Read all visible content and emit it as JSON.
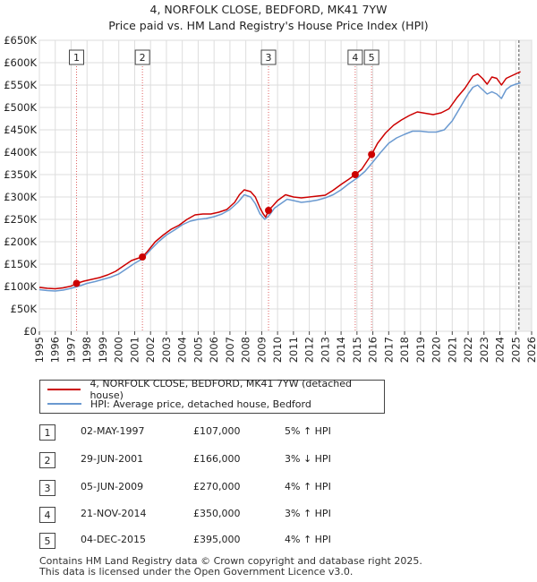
{
  "chart_data": {
    "type": "line",
    "title": "4, NORFOLK CLOSE, BEDFORD, MK41 7YW",
    "subtitle": "Price paid vs. HM Land Registry's House Price Index (HPI)",
    "xlabel": "",
    "ylabel": "",
    "xlim": [
      1995,
      2026
    ],
    "ylim": [
      0,
      650000
    ],
    "x_ticks": [
      "1995",
      "1996",
      "1997",
      "1998",
      "1999",
      "2000",
      "2001",
      "2002",
      "2003",
      "2004",
      "2005",
      "2006",
      "2007",
      "2008",
      "2009",
      "2010",
      "2011",
      "2012",
      "2013",
      "2014",
      "2015",
      "2016",
      "2017",
      "2018",
      "2019",
      "2020",
      "2021",
      "2022",
      "2023",
      "2024",
      "2025",
      "2026"
    ],
    "y_ticks": [
      {
        "value": 0,
        "label": "£0"
      },
      {
        "value": 50000,
        "label": "£50K"
      },
      {
        "value": 100000,
        "label": "£100K"
      },
      {
        "value": 150000,
        "label": "£150K"
      },
      {
        "value": 200000,
        "label": "£200K"
      },
      {
        "value": 250000,
        "label": "£250K"
      },
      {
        "value": 300000,
        "label": "£300K"
      },
      {
        "value": 350000,
        "label": "£350K"
      },
      {
        "value": 400000,
        "label": "£400K"
      },
      {
        "value": 450000,
        "label": "£450K"
      },
      {
        "value": 500000,
        "label": "£500K"
      },
      {
        "value": 550000,
        "label": "£550K"
      },
      {
        "value": 600000,
        "label": "£600K"
      },
      {
        "value": 650000,
        "label": "£650K"
      }
    ],
    "grid": true,
    "series": [
      {
        "name": "4, NORFOLK CLOSE, BEDFORD, MK41 7YW (detached house)",
        "color": "#cc0000",
        "x": [
          1995.0,
          1995.5,
          1996.0,
          1996.5,
          1997.0,
          1997.34,
          1997.8,
          1998.3,
          1998.8,
          1999.3,
          1999.8,
          2000.3,
          2000.8,
          2001.2,
          2001.49,
          2001.8,
          2002.3,
          2002.8,
          2003.3,
          2003.8,
          2004.3,
          2004.8,
          2005.3,
          2005.8,
          2006.3,
          2006.8,
          2007.3,
          2007.6,
          2007.9,
          2008.3,
          2008.6,
          2008.9,
          2009.1,
          2009.25,
          2009.43,
          2009.7,
          2010.0,
          2010.5,
          2011.0,
          2011.5,
          2012.0,
          2012.5,
          2013.0,
          2013.5,
          2014.0,
          2014.5,
          2014.89,
          2015.3,
          2015.6,
          2015.92,
          2016.3,
          2016.8,
          2017.3,
          2017.8,
          2018.3,
          2018.8,
          2019.3,
          2019.8,
          2020.3,
          2020.8,
          2021.3,
          2021.8,
          2022.3,
          2022.6,
          2022.9,
          2023.2,
          2023.5,
          2023.8,
          2024.1,
          2024.4,
          2024.7,
          2025.0,
          2025.3
        ],
        "values": [
          98000,
          96000,
          95000,
          97000,
          101000,
          107000,
          112000,
          116000,
          120000,
          126000,
          134000,
          146000,
          158000,
          163000,
          166000,
          178000,
          200000,
          215000,
          228000,
          237000,
          250000,
          260000,
          262000,
          262000,
          266000,
          272000,
          288000,
          305000,
          316000,
          312000,
          300000,
          275000,
          262000,
          255000,
          270000,
          280000,
          292000,
          305000,
          300000,
          298000,
          300000,
          302000,
          304000,
          315000,
          328000,
          340000,
          350000,
          362000,
          378000,
          395000,
          420000,
          443000,
          460000,
          472000,
          482000,
          490000,
          487000,
          484000,
          488000,
          497000,
          522000,
          543000,
          570000,
          575000,
          565000,
          552000,
          568000,
          565000,
          550000,
          565000,
          570000,
          575000,
          580000
        ]
      },
      {
        "name": "HPI: Average price, detached house, Bedford",
        "color": "#6a99d0",
        "x": [
          1995.0,
          1995.5,
          1996.0,
          1996.5,
          1997.0,
          1997.5,
          1998.0,
          1998.5,
          1999.0,
          1999.5,
          2000.0,
          2000.5,
          2001.0,
          2001.5,
          2002.0,
          2002.5,
          2003.0,
          2003.5,
          2004.0,
          2004.5,
          2005.0,
          2005.5,
          2006.0,
          2006.5,
          2007.0,
          2007.5,
          2007.9,
          2008.3,
          2008.6,
          2008.9,
          2009.2,
          2009.5,
          2009.8,
          2010.2,
          2010.6,
          2011.0,
          2011.5,
          2012.0,
          2012.5,
          2013.0,
          2013.5,
          2014.0,
          2014.5,
          2015.0,
          2015.5,
          2016.0,
          2016.5,
          2017.0,
          2017.5,
          2018.0,
          2018.5,
          2019.0,
          2019.5,
          2020.0,
          2020.5,
          2021.0,
          2021.5,
          2022.0,
          2022.3,
          2022.6,
          2022.9,
          2023.2,
          2023.5,
          2023.8,
          2024.1,
          2024.4,
          2024.7,
          2025.0,
          2025.3
        ],
        "values": [
          93000,
          91000,
          90000,
          92000,
          96000,
          101000,
          107000,
          111000,
          116000,
          121000,
          128000,
          140000,
          152000,
          162000,
          182000,
          200000,
          215000,
          226000,
          238000,
          246000,
          250000,
          252000,
          256000,
          262000,
          272000,
          288000,
          305000,
          300000,
          285000,
          262000,
          250000,
          260000,
          275000,
          285000,
          295000,
          292000,
          288000,
          290000,
          293000,
          298000,
          305000,
          316000,
          330000,
          342000,
          357000,
          378000,
          400000,
          420000,
          432000,
          440000,
          447000,
          447000,
          445000,
          445000,
          450000,
          470000,
          500000,
          530000,
          545000,
          550000,
          540000,
          530000,
          535000,
          530000,
          520000,
          540000,
          548000,
          552000,
          555000
        ]
      }
    ],
    "sales": [
      {
        "n": "1",
        "x": 1997.34,
        "value": 107000
      },
      {
        "n": "2",
        "x": 2001.49,
        "value": 166000
      },
      {
        "n": "3",
        "x": 2009.43,
        "value": 270000
      },
      {
        "n": "4",
        "x": 2014.89,
        "value": 350000
      },
      {
        "n": "5",
        "x": 2015.92,
        "value": 395000
      }
    ],
    "forecast_start": 2025.2
  },
  "legend": {
    "property": "4, NORFOLK CLOSE, BEDFORD, MK41 7YW (detached house)",
    "hpi": "HPI: Average price, detached house, Bedford"
  },
  "transactions": [
    {
      "n": "1",
      "date": "02-MAY-1997",
      "price": "£107,000",
      "hpi": "5% ↑ HPI"
    },
    {
      "n": "2",
      "date": "29-JUN-2001",
      "price": "£166,000",
      "hpi": "3% ↓ HPI"
    },
    {
      "n": "3",
      "date": "05-JUN-2009",
      "price": "£270,000",
      "hpi": "4% ↑ HPI"
    },
    {
      "n": "4",
      "date": "21-NOV-2014",
      "price": "£350,000",
      "hpi": "3% ↑ HPI"
    },
    {
      "n": "5",
      "date": "04-DEC-2015",
      "price": "£395,000",
      "hpi": "4% ↑ HPI"
    }
  ],
  "footer": {
    "line1": "Contains HM Land Registry data © Crown copyright and database right 2025.",
    "line2": "This data is licensed under the Open Government Licence v3.0."
  }
}
